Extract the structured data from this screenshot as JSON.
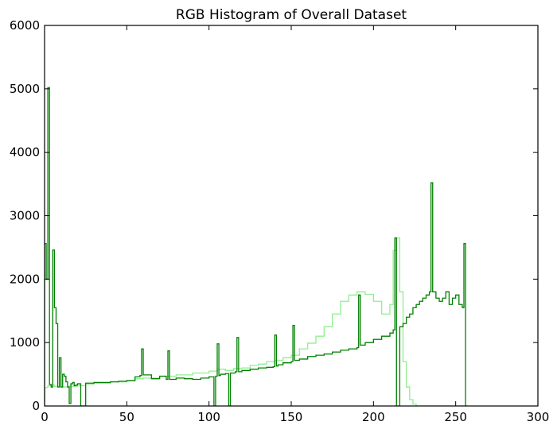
{
  "chart_data": {
    "type": "histogram",
    "title": "RGB Histogram of Overall Dataset",
    "xlabel": "",
    "ylabel": "",
    "xlim": [
      0,
      300
    ],
    "ylim": [
      0,
      6000
    ],
    "xticks": [
      0,
      50,
      100,
      150,
      200,
      250,
      300
    ],
    "yticks": [
      0,
      1000,
      2000,
      3000,
      4000,
      5000,
      6000
    ],
    "grid": false,
    "legend": "none",
    "bin_width": 1,
    "series": [
      {
        "color": "#90ee90",
        "x": [
          0,
          2,
          4,
          6,
          8,
          10,
          15,
          20,
          25,
          30,
          40,
          50,
          55,
          60,
          70,
          80,
          90,
          100,
          105,
          110,
          115,
          120,
          125,
          130,
          135,
          140,
          145,
          150,
          155,
          160,
          165,
          170,
          175,
          180,
          185,
          190,
          195,
          200,
          205,
          210,
          212,
          214,
          216,
          218,
          220,
          222,
          224,
          226,
          230,
          240,
          256
        ],
        "values": [
          290,
          320,
          330,
          310,
          300,
          300,
          310,
          320,
          340,
          360,
          380,
          400,
          430,
          440,
          470,
          490,
          520,
          550,
          580,
          560,
          590,
          600,
          640,
          660,
          700,
          720,
          760,
          800,
          900,
          990,
          1100,
          1250,
          1450,
          1650,
          1750,
          1800,
          1760,
          1650,
          1450,
          1600,
          2450,
          2650,
          1800,
          700,
          300,
          100,
          30,
          0,
          0,
          0,
          0
        ]
      },
      {
        "color": "#008000",
        "x": [
          0,
          1,
          2,
          3,
          4,
          5,
          6,
          7,
          8,
          9,
          10,
          11,
          12,
          13,
          14,
          15,
          16,
          17,
          18,
          19,
          20,
          22,
          25,
          30,
          35,
          40,
          45,
          50,
          55,
          58,
          59,
          60,
          65,
          70,
          74,
          75,
          76,
          80,
          85,
          90,
          95,
          100,
          103,
          104,
          105,
          106,
          107,
          108,
          110,
          112,
          113,
          116,
          117,
          118,
          120,
          125,
          130,
          135,
          139,
          140,
          141,
          142,
          145,
          150,
          151,
          152,
          155,
          160,
          165,
          170,
          175,
          180,
          185,
          190,
          191,
          192,
          195,
          200,
          205,
          210,
          212,
          213,
          214,
          216,
          218,
          220,
          222,
          224,
          226,
          228,
          230,
          232,
          234,
          235,
          236,
          238,
          240,
          242,
          244,
          246,
          248,
          250,
          252,
          254,
          255,
          256
        ],
        "values": [
          2560,
          2000,
          5020,
          340,
          300,
          2460,
          1550,
          1300,
          300,
          760,
          300,
          500,
          470,
          380,
          300,
          40,
          350,
          370,
          320,
          330,
          350,
          0,
          360,
          370,
          370,
          380,
          390,
          400,
          460,
          480,
          900,
          490,
          430,
          470,
          420,
          870,
          420,
          440,
          430,
          420,
          440,
          460,
          0,
          470,
          980,
          480,
          500,
          500,
          510,
          0,
          520,
          540,
          1080,
          540,
          560,
          580,
          600,
          610,
          620,
          1120,
          630,
          650,
          680,
          700,
          1270,
          720,
          740,
          780,
          800,
          820,
          850,
          880,
          900,
          920,
          1750,
          960,
          1000,
          1050,
          1100,
          1150,
          1200,
          2650,
          0,
          1250,
          1300,
          1400,
          1450,
          1550,
          1600,
          1650,
          1700,
          1750,
          1800,
          3520,
          1800,
          1700,
          1650,
          1700,
          1800,
          1600,
          1700,
          1750,
          1600,
          1550,
          2560,
          0
        ]
      },
      {
        "color": "#228b22",
        "x": [
          16,
          22,
          30,
          40,
          50,
          60,
          70,
          80,
          100,
          102,
          110,
          120,
          130,
          140,
          150,
          160,
          170,
          180,
          190,
          200,
          210,
          214,
          220,
          224,
          226,
          228,
          230,
          232,
          234,
          240,
          246,
          250,
          254
        ],
        "values": [
          0,
          0,
          0,
          0,
          0,
          0,
          0,
          0,
          0,
          0,
          0,
          0,
          0,
          0,
          0,
          0,
          0,
          0,
          0,
          0,
          0,
          0,
          0,
          0,
          0,
          0,
          0,
          0,
          0,
          0,
          0,
          0,
          0
        ]
      }
    ]
  }
}
